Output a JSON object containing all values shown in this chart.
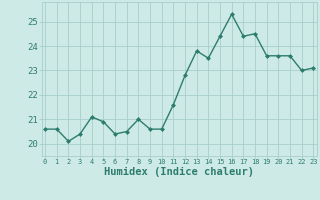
{
  "x_values": [
    0,
    1,
    2,
    3,
    4,
    5,
    6,
    7,
    8,
    9,
    10,
    11,
    12,
    13,
    14,
    15,
    16,
    17,
    18,
    19,
    20,
    21,
    22,
    23
  ],
  "y_values": [
    20.6,
    20.6,
    20.1,
    20.4,
    21.1,
    20.9,
    20.4,
    20.5,
    21.0,
    20.6,
    20.6,
    21.6,
    22.8,
    23.8,
    23.5,
    24.4,
    25.3,
    24.4,
    24.5,
    23.6,
    23.6,
    23.6,
    23.0,
    23.1
  ],
  "line_color": "#2d7d6e",
  "marker": "D",
  "marker_size": 2.0,
  "line_width": 1.0,
  "bg_color": "#ceeae6",
  "grid_color": "#a8cec9",
  "xlabel": "Humidex (Indice chaleur)",
  "xlabel_fontsize": 7.5,
  "tick_color": "#2d7d6e",
  "ylim": [
    19.5,
    25.8
  ],
  "yticks": [
    20,
    21,
    22,
    23,
    24,
    25
  ],
  "xticks": [
    0,
    1,
    2,
    3,
    4,
    5,
    6,
    7,
    8,
    9,
    10,
    11,
    12,
    13,
    14,
    15,
    16,
    17,
    18,
    19,
    20,
    21,
    22,
    23
  ],
  "xlim": [
    -0.3,
    23.3
  ]
}
